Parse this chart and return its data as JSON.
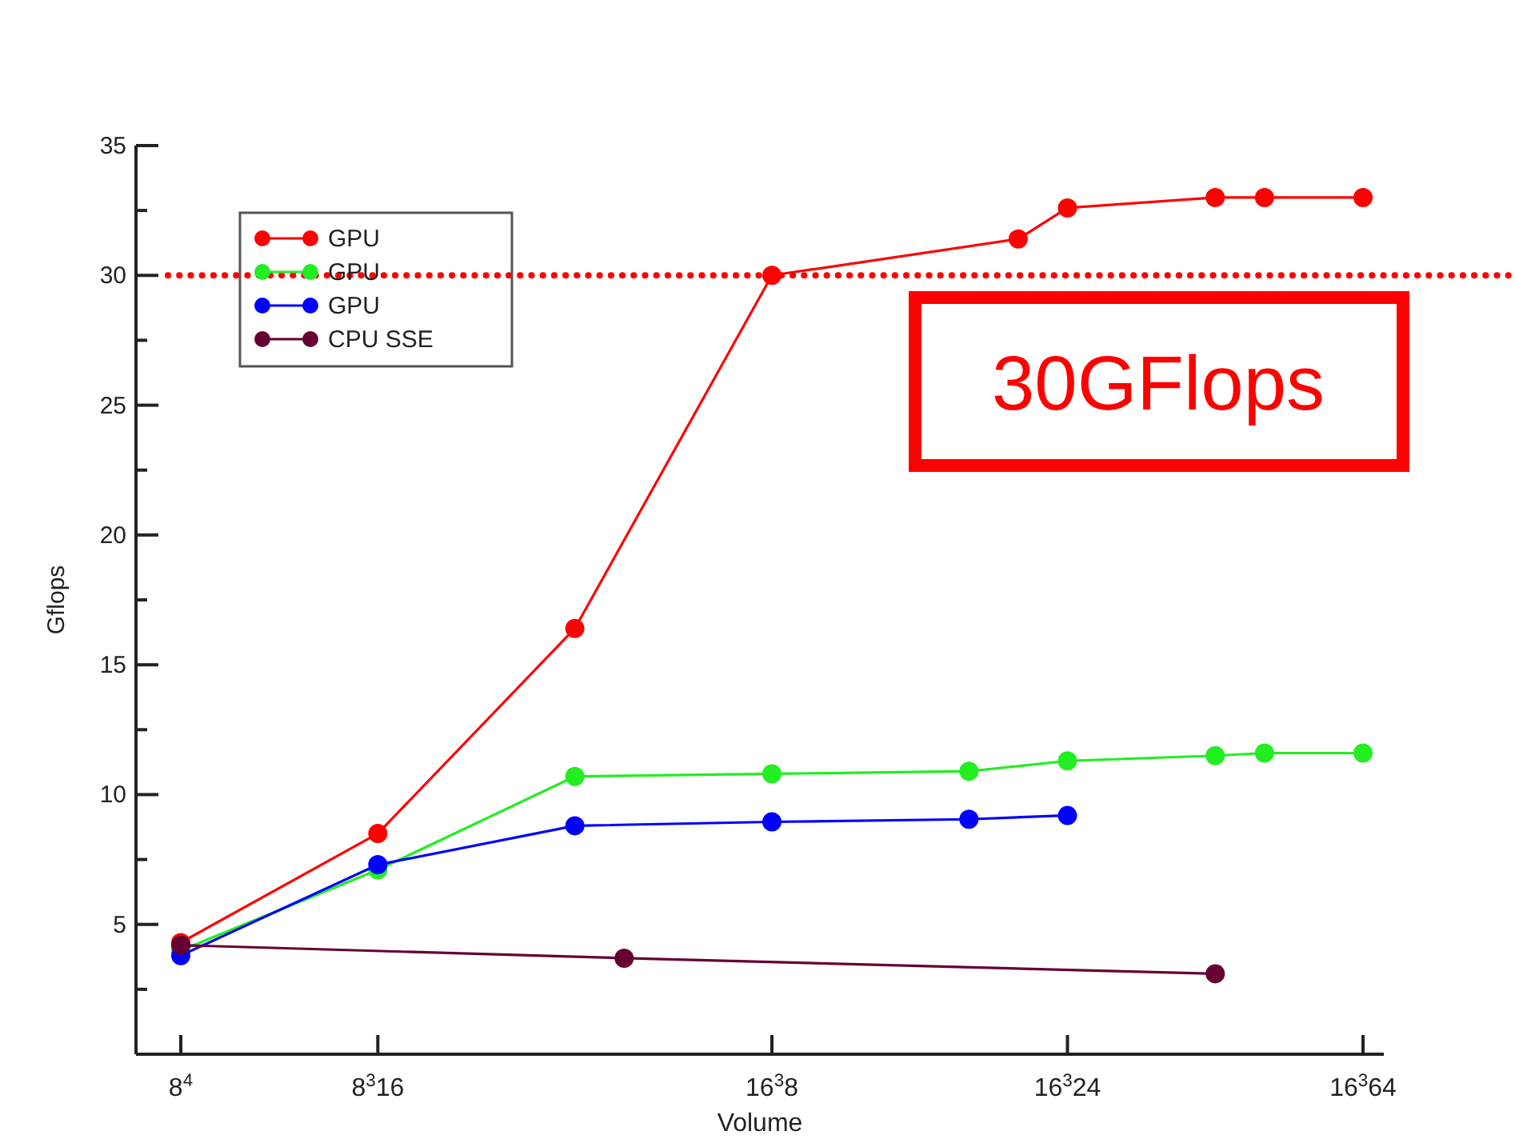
{
  "chart_data": {
    "type": "line",
    "xlabel": "Volume",
    "ylabel": "Gflops",
    "marker": "circle",
    "line_style": "solid",
    "legend": "top left",
    "categories": [
      "8$^{4}$",
      null,
      null,
      null,
      "8$^{3}$16",
      null,
      null,
      null,
      null,
      null,
      null,
      null,
      "16$^{3}$8",
      null,
      null,
      null,
      null,
      null,
      "16$^{3}$24",
      null,
      null,
      null,
      null,
      null,
      "16$^{3}$64"
    ],
    "ylim": [
      0,
      35
    ],
    "yticks": [
      {
        "value": 2.5,
        "label": null
      },
      5,
      {
        "value": 7.5,
        "label": null
      },
      10,
      {
        "value": 12.5,
        "label": null
      },
      15,
      {
        "value": 17.5,
        "label": null
      },
      20,
      {
        "value": 22.5,
        "label": null
      },
      25,
      {
        "value": 27.5,
        "label": null
      },
      30,
      {
        "value": 32.5,
        "label": null
      },
      35
    ],
    "series": [
      {
        "name": "GPU",
        "color": "#ff0000",
        "values": [
          4.3,
          null,
          null,
          null,
          8.5,
          null,
          null,
          null,
          16.4,
          null,
          null,
          null,
          30,
          null,
          null,
          null,
          null,
          31.4,
          32.6,
          null,
          null,
          33,
          33,
          null,
          33
        ]
      },
      {
        "name": "GPU",
        "color": "#22ee22",
        "values": [
          4.0,
          null,
          null,
          null,
          7.1,
          null,
          null,
          null,
          10.7,
          null,
          null,
          null,
          10.8,
          null,
          null,
          null,
          10.9,
          null,
          11.3,
          null,
          null,
          11.5,
          11.6,
          null,
          11.6
        ]
      },
      {
        "name": "GPU",
        "color": "#0000ff",
        "values": [
          3.8,
          null,
          null,
          null,
          7.3,
          null,
          null,
          null,
          8.8,
          null,
          null,
          null,
          8.95,
          null,
          null,
          null,
          9.05,
          null,
          9.2,
          null,
          null,
          null,
          null,
          null,
          null
        ]
      },
      {
        "name": "CPU SSE",
        "color": "#660033",
        "values": [
          4.2,
          null,
          null,
          null,
          null,
          null,
          null,
          null,
          null,
          3.7,
          null,
          null,
          null,
          null,
          null,
          null,
          null,
          null,
          null,
          null,
          null,
          3.1,
          null,
          null,
          null
        ]
      }
    ],
    "ref_lines": [
      {
        "axis": "y",
        "value": 30,
        "label": "30GFlops",
        "color": "#ff0000",
        "line_style": "dotted"
      }
    ]
  }
}
